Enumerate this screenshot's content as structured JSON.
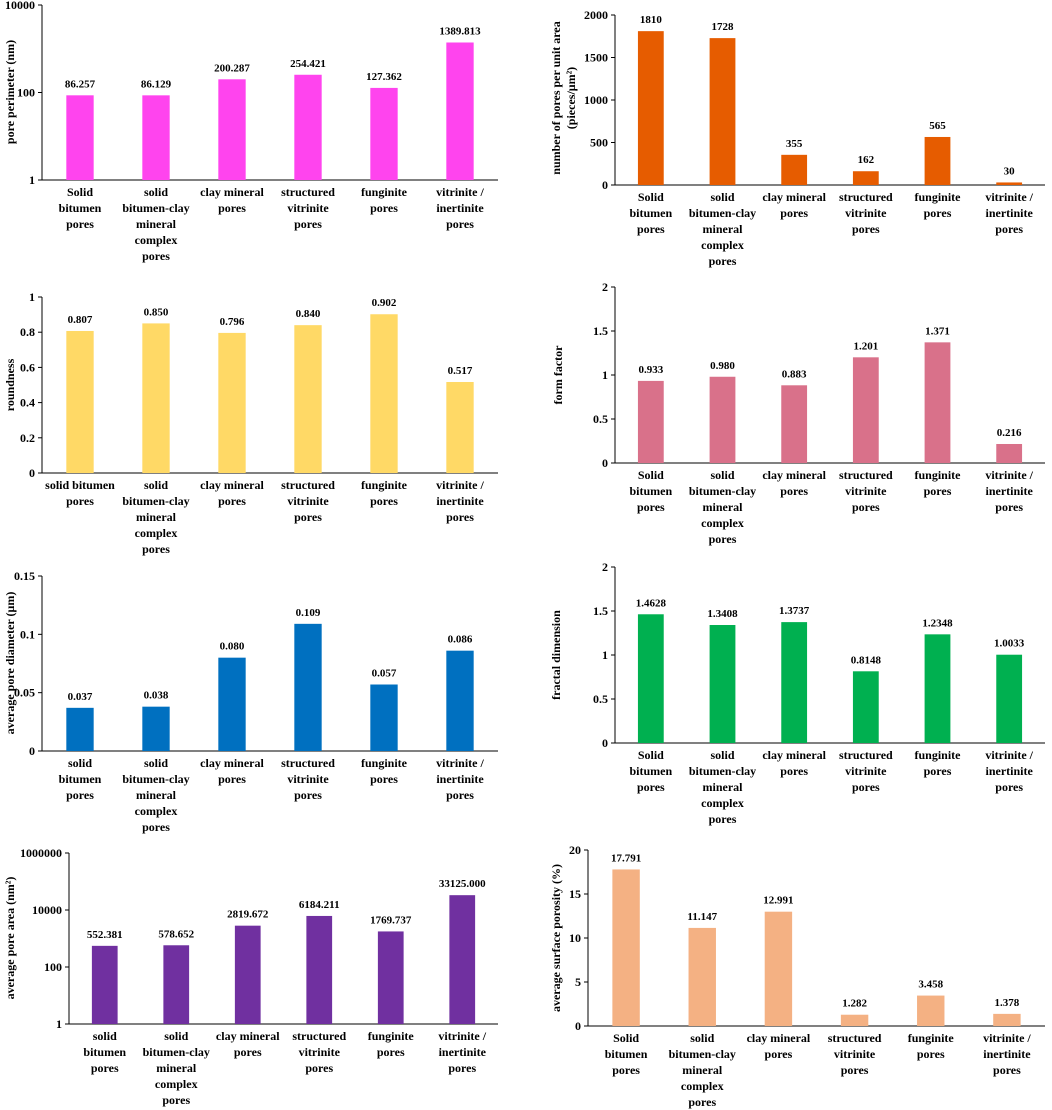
{
  "chart_data": [
    {
      "id": "pore-perimeter",
      "type": "bar",
      "yscale": "log",
      "ylabel": "pore perimeter (nm)",
      "yticks": [
        1,
        100,
        10000
      ],
      "ytick_labels": [
        "1",
        "100",
        "10000"
      ],
      "ylim": [
        1,
        10000
      ],
      "color": "#FF44EE",
      "categories": [
        "Solid\nbitumen\npores",
        "solid\nbitumen-clay\nmineral\ncomplex\npores",
        "clay mineral\npores",
        "structured\nvitrinite\npores",
        "funginite\npores",
        "vitrinite /\ninertinite\npores"
      ],
      "values": [
        86.257,
        86.129,
        200.287,
        254.421,
        127.362,
        1389.813
      ],
      "labels": [
        "86.257",
        "86.129",
        "200.287",
        "254.421",
        "127.362",
        "1389.813"
      ]
    },
    {
      "id": "pores-per-area",
      "type": "bar",
      "yscale": "linear",
      "ylabel": "number of pores per unit area",
      "ylabel2": "(pieces/μm²)",
      "yticks": [
        0,
        500,
        1000,
        1500,
        2000
      ],
      "ytick_labels": [
        "0",
        "500",
        "1000",
        "1500",
        "2000"
      ],
      "ylim": [
        0,
        2000
      ],
      "color": "#E65C00",
      "categories": [
        "Solid\nbitumen\npores",
        "solid\nbitumen-clay\nmineral\ncomplex\npores",
        "clay mineral\npores",
        "structured\nvitrinite\npores",
        "funginite\npores",
        "vitrinite /\ninertinite\npores"
      ],
      "values": [
        1810,
        1728,
        355,
        162,
        565,
        30
      ],
      "labels": [
        "1810",
        "1728",
        "355",
        "162",
        "565",
        "30"
      ]
    },
    {
      "id": "roundness",
      "type": "bar",
      "yscale": "linear",
      "ylabel": "roundness",
      "yticks": [
        0,
        0.2,
        0.4,
        0.6,
        0.8,
        1
      ],
      "ytick_labels": [
        "0",
        "0.2",
        "0.4",
        "0.6",
        "0.8",
        "1"
      ],
      "ylim": [
        0,
        1
      ],
      "color": "#FFD966",
      "categories": [
        "solid bitumen\npores",
        "solid\nbitumen-clay\nmineral\ncomplex\npores",
        "clay mineral\npores",
        "structured\nvitrinite\npores",
        "funginite\npores",
        "vitrinite /\ninertinite\npores"
      ],
      "values": [
        0.807,
        0.85,
        0.796,
        0.84,
        0.902,
        0.517
      ],
      "labels": [
        "0.807",
        "0.850",
        "0.796",
        "0.840",
        "0.902",
        "0.517"
      ]
    },
    {
      "id": "form-factor",
      "type": "bar",
      "yscale": "linear",
      "ylabel": "form factor",
      "yticks": [
        0,
        0.5,
        1,
        1.5,
        2
      ],
      "ytick_labels": [
        "0",
        "0.5",
        "1",
        "1.5",
        "2"
      ],
      "ylim": [
        0,
        2
      ],
      "color": "#D9718A",
      "categories": [
        "Solid\nbitumen\npores",
        "solid\nbitumen-clay\nmineral\ncomplex\npores",
        "clay mineral\npores",
        "structured\nvitrinite\npores",
        "funginite\npores",
        "vitrinite /\ninertinite\npores"
      ],
      "values": [
        0.933,
        0.98,
        0.883,
        1.201,
        1.371,
        0.216
      ],
      "labels": [
        "0.933",
        "0.980",
        "0.883",
        "1.201",
        "1.371",
        "0.216"
      ]
    },
    {
      "id": "avg-pore-diameter",
      "type": "bar",
      "yscale": "linear",
      "ylabel": "average pore diameter (μm)",
      "yticks": [
        0,
        0.05,
        0.1,
        0.15
      ],
      "ytick_labels": [
        "0",
        "0.05",
        "0.1",
        "0.15"
      ],
      "ylim": [
        0,
        0.15
      ],
      "color": "#0070C0",
      "categories": [
        "solid\nbitumen\npores",
        "solid\nbitumen-clay\nmineral\ncomplex\npores",
        "clay mineral\npores",
        "structured\nvitrinite\npores",
        "funginite\npores",
        "vitrinite /\ninertinite\npores"
      ],
      "values": [
        0.037,
        0.038,
        0.08,
        0.109,
        0.057,
        0.086
      ],
      "labels": [
        "0.037",
        "0.038",
        "0.080",
        "0.109",
        "0.057",
        "0.086"
      ]
    },
    {
      "id": "fractal-dimension",
      "type": "bar",
      "yscale": "linear",
      "ylabel": "fractal dimension",
      "yticks": [
        0,
        0.5,
        1,
        1.5,
        2
      ],
      "ytick_labels": [
        "0",
        "0.5",
        "1",
        "1.5",
        "2"
      ],
      "ylim": [
        0,
        2
      ],
      "color": "#00B050",
      "categories": [
        "Solid\nbitumen\npores",
        "solid\nbitumen-clay\nmineral\ncomplex\npores",
        "clay mineral\npores",
        "structured\nvitrinite\npores",
        "funginite\npores",
        "vitrinite /\ninertinite\npores"
      ],
      "values": [
        1.4628,
        1.3408,
        1.3737,
        0.8148,
        1.2348,
        1.0033
      ],
      "labels": [
        "1.4628",
        "1.3408",
        "1.3737",
        "0.8148",
        "1.2348",
        "1.0033"
      ]
    },
    {
      "id": "avg-pore-area",
      "type": "bar",
      "yscale": "log",
      "ylabel": "average pore area (nm²)",
      "yticks": [
        1,
        100,
        10000,
        1000000
      ],
      "ytick_labels": [
        "1",
        "100",
        "10000",
        "1000000"
      ],
      "ylim": [
        1,
        1000000
      ],
      "color": "#7030A0",
      "categories": [
        "solid\nbitumen\npores",
        "solid\nbitumen-clay\nmineral\ncomplex\npores",
        "clay mineral\npores",
        "structured\nvitrinite\npores",
        "funginite\npores",
        "vitrinite /\ninertinite\npores"
      ],
      "values": [
        552.381,
        578.652,
        2819.672,
        6184.211,
        1769.737,
        33125.0
      ],
      "labels": [
        "552.381",
        "578.652",
        "2819.672",
        "6184.211",
        "1769.737",
        "33125.000"
      ]
    },
    {
      "id": "avg-surface-porosity",
      "type": "bar",
      "yscale": "linear",
      "ylabel": "average surface porosity (%)",
      "yticks": [
        0,
        5,
        10,
        15,
        20
      ],
      "ytick_labels": [
        "0",
        "5",
        "10",
        "15",
        "20"
      ],
      "ylim": [
        0,
        20
      ],
      "color": "#F4B183",
      "categories": [
        "Solid\nbitumen\npores",
        "solid\nbitumen-clay\nmineral\ncomplex\npores",
        "clay mineral\npores",
        "structured\nvitrinite\npores",
        "funginite\npores",
        "vitrinite /\ninertinite\npores"
      ],
      "values": [
        17.791,
        11.147,
        12.991,
        1.282,
        3.458,
        1.378
      ],
      "labels": [
        "17.791",
        "11.147",
        "12.991",
        "1.282",
        "3.458",
        "1.378"
      ]
    }
  ]
}
